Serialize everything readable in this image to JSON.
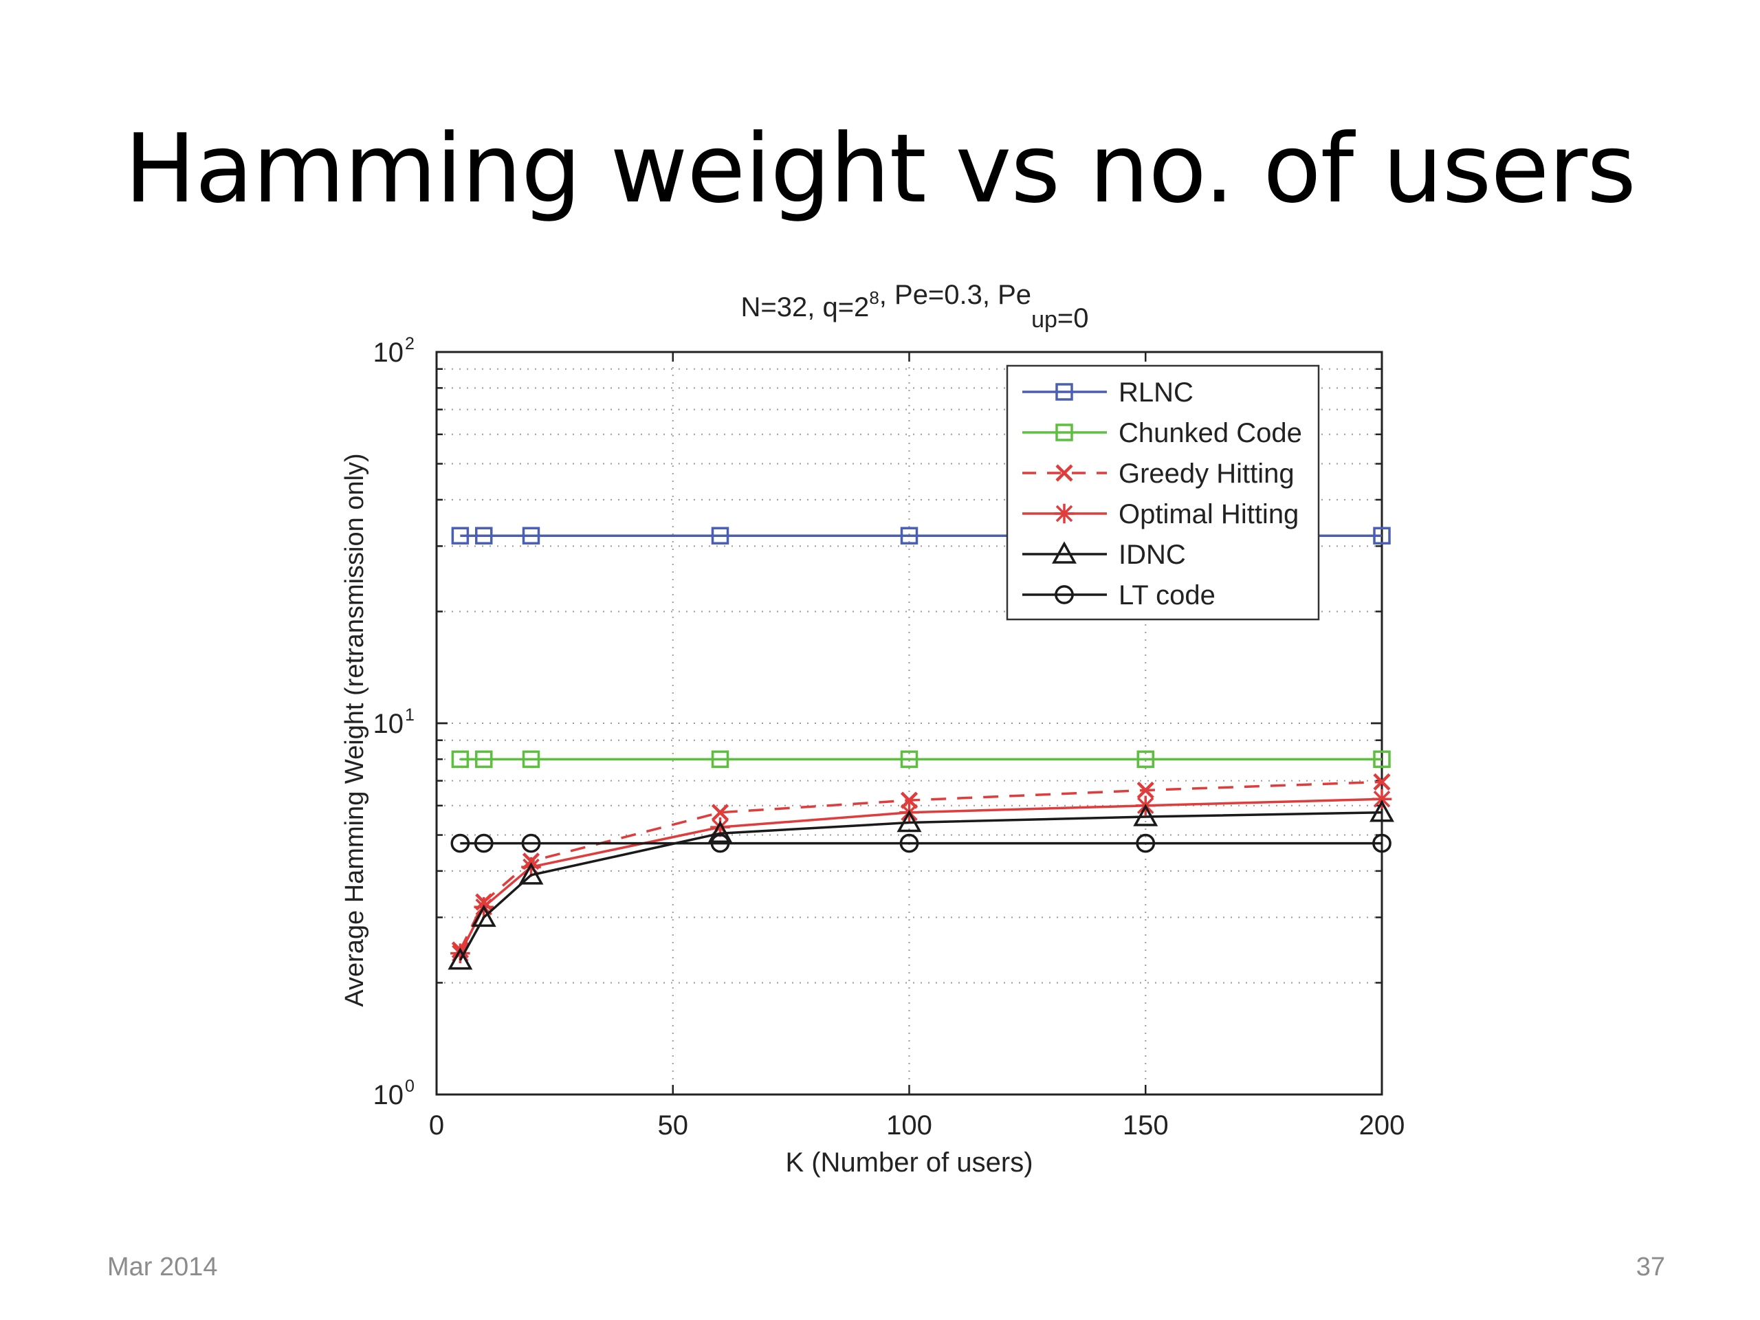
{
  "slide": {
    "title": "Hamming weight vs no. of users",
    "footer_date": "Mar 2014",
    "page_number": "37"
  },
  "chart_data": {
    "type": "line",
    "title": {
      "parts": [
        {
          "text": "N=32, q=2"
        },
        {
          "text": "8",
          "sup": true
        },
        {
          "text": ", Pe=0.3, Pe"
        },
        {
          "text": "up",
          "sub": true
        },
        {
          "text": "=0"
        }
      ]
    },
    "xlabel": "K (Number of users)",
    "ylabel": "Average Hamming Weight (retransmission only)",
    "xlim": [
      0,
      200
    ],
    "ylim": [
      1,
      100
    ],
    "yscale": "log",
    "grid": true,
    "legend_position": "top-right",
    "x_ticks": [
      0,
      50,
      100,
      150,
      200
    ],
    "y_ticks": [
      {
        "value": 1,
        "base": "10",
        "exp": "0"
      },
      {
        "value": 10,
        "base": "10",
        "exp": "1"
      },
      {
        "value": 100,
        "base": "10",
        "exp": "2"
      }
    ],
    "x": [
      5,
      10,
      20,
      60,
      100,
      150,
      200
    ],
    "series": [
      {
        "name": "RLNC",
        "color": "#4a5fb4",
        "dash": "solid",
        "marker": "square",
        "values": [
          32,
          32,
          32,
          32,
          32,
          32,
          32
        ]
      },
      {
        "name": "Chunked Code",
        "color": "#5cbf3e",
        "dash": "solid",
        "marker": "square",
        "values": [
          8,
          8,
          8,
          8,
          8,
          8,
          8
        ]
      },
      {
        "name": "Greedy Hitting",
        "color": "#e03c3c",
        "dash": "dashed",
        "marker": "x",
        "values": [
          2.45,
          3.3,
          4.25,
          5.75,
          6.2,
          6.6,
          6.95
        ]
      },
      {
        "name": "Optimal Hitting",
        "color": "#e03c3c",
        "dash": "solid",
        "marker": "star",
        "values": [
          2.4,
          3.2,
          4.1,
          5.25,
          5.75,
          6.0,
          6.25
        ]
      },
      {
        "name": "IDNC",
        "color": "#1a1a1a",
        "dash": "solid",
        "marker": "triangle",
        "values": [
          2.3,
          3.0,
          3.9,
          5.05,
          5.4,
          5.6,
          5.75
        ]
      },
      {
        "name": "LT code",
        "color": "#1a1a1a",
        "dash": "solid",
        "marker": "circle",
        "values": [
          4.75,
          4.75,
          4.75,
          4.75,
          4.75,
          4.75,
          4.75
        ]
      }
    ]
  }
}
